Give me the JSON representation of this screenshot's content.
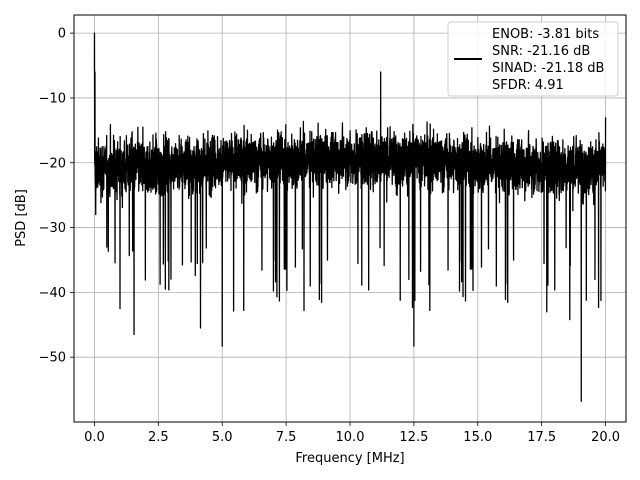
{
  "chart_data": {
    "type": "line",
    "title": "",
    "xlabel": "Frequency [MHz]",
    "ylabel": "PSD [dB]",
    "xlim": [
      -0.8,
      20.8
    ],
    "ylim": [
      -60.0,
      2.8
    ],
    "xticks": [
      0.0,
      2.5,
      5.0,
      7.5,
      10.0,
      12.5,
      15.0,
      17.5,
      20.0
    ],
    "xtick_labels": [
      "0.0",
      "2.5",
      "5.0",
      "7.5",
      "10.0",
      "12.5",
      "15.0",
      "17.5",
      "20.0"
    ],
    "yticks": [
      0,
      -10,
      -20,
      -30,
      -40,
      -50
    ],
    "ytick_labels": [
      "0",
      "−10",
      "−20",
      "−30",
      "−40",
      "−50"
    ],
    "grid": true,
    "legend_position": "top-right",
    "series": [
      {
        "color": "#000000",
        "sample_count_approx": 4096,
        "x_range": [
          0.0,
          20.0
        ],
        "description_values": {
          "peak_x": 0.0,
          "peak_y": 0.0,
          "floor_mean_y": -20.0,
          "band_top_y": -10.0,
          "band_bottom_y": -30.0
        },
        "notable_points": [
          {
            "x": 0.0,
            "y": 0.0
          },
          {
            "x": 0.02,
            "y": -6.0
          },
          {
            "x": 0.05,
            "y": -28.0
          },
          {
            "x": 1.0,
            "y": -42.5
          },
          {
            "x": 1.55,
            "y": -46.5
          },
          {
            "x": 4.15,
            "y": -45.5
          },
          {
            "x": 5.0,
            "y": -48.3
          },
          {
            "x": 8.2,
            "y": -42.8
          },
          {
            "x": 11.2,
            "y": -6.0
          },
          {
            "x": 12.5,
            "y": -48.3
          },
          {
            "x": 17.7,
            "y": -43.0
          },
          {
            "x": 18.6,
            "y": -44.2
          },
          {
            "x": 19.05,
            "y": -56.8
          },
          {
            "x": 20.0,
            "y": -13.0
          }
        ]
      }
    ],
    "legend": {
      "lines": [
        "ENOB: -3.81 bits",
        "SNR: -21.16 dB",
        "SINAD: -21.18 dB",
        "SFDR: 4.91"
      ]
    }
  }
}
